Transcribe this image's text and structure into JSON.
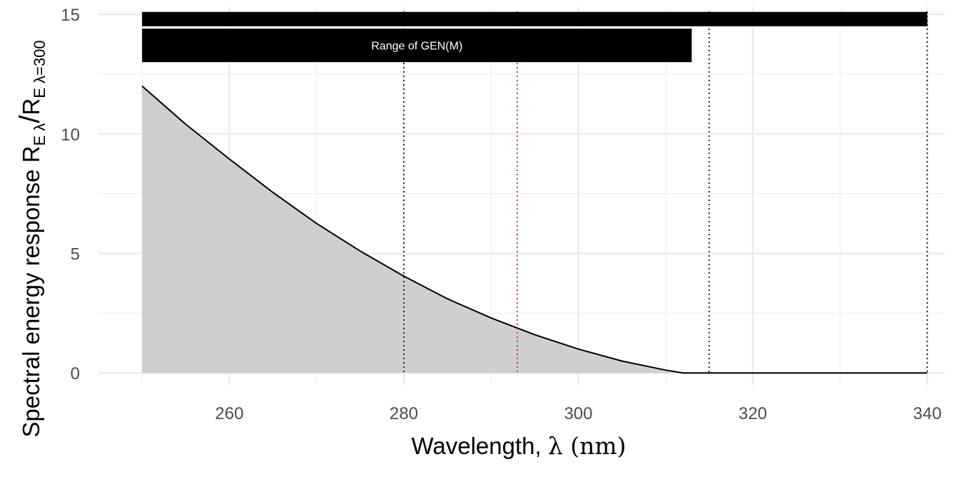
{
  "chart_data": {
    "type": "area",
    "title": "",
    "xlabel": "Wavelength, λ (nm)",
    "xlabel_parts": {
      "prefix": "Wavelength, ",
      "symbol": "λ",
      "suffix": " (nm)"
    },
    "ylabel": "Spectral energy response R_E λ / R_E λ=300",
    "ylabel_parts": {
      "prefix": "Spectral energy response ",
      "num_base": "R",
      "num_sub": "E λ",
      "slash": "/",
      "den_base": "R",
      "den_sub": "E λ=300"
    },
    "xlim": [
      245,
      342
    ],
    "ylim": [
      -0.5,
      15.3
    ],
    "x_ticks": [
      260,
      280,
      300,
      320,
      340
    ],
    "x_tick_labels": [
      "260",
      "280",
      "300",
      "320",
      "340"
    ],
    "y_ticks": [
      0,
      5,
      10,
      15
    ],
    "y_tick_labels": [
      "0",
      "5",
      "10",
      "15"
    ],
    "grid": true,
    "legend": "none",
    "series": [
      {
        "x": [
          250,
          255,
          260,
          265,
          270,
          275,
          280,
          285,
          290,
          295,
          300,
          305,
          310,
          312,
          315,
          320,
          325,
          330,
          335,
          340
        ],
        "y": [
          12.0,
          10.4,
          8.95,
          7.55,
          6.25,
          5.1,
          4.05,
          3.1,
          2.3,
          1.6,
          1.0,
          0.5,
          0.12,
          0.0,
          0.0,
          0.0,
          0.0,
          0.0,
          0.0,
          0.0
        ]
      }
    ],
    "area_fill_color": "#cccccc",
    "line_color": "#000000",
    "ranges": [
      {
        "x_start": 250,
        "x_end": 340,
        "y_bottom": 14.5,
        "y_top": 15.1,
        "label": ""
      },
      {
        "x_start": 250,
        "x_end": 313,
        "y_bottom": 13.0,
        "y_top": 14.4,
        "label": "Range of GEN(M)"
      }
    ],
    "reference_lines": [
      {
        "x": 280,
        "color": "#000000"
      },
      {
        "x": 293,
        "color": "#e8000b"
      },
      {
        "x": 315,
        "color": "#000000"
      },
      {
        "x": 340,
        "color": "#000000"
      }
    ],
    "grid_color": "#ebebeb"
  }
}
